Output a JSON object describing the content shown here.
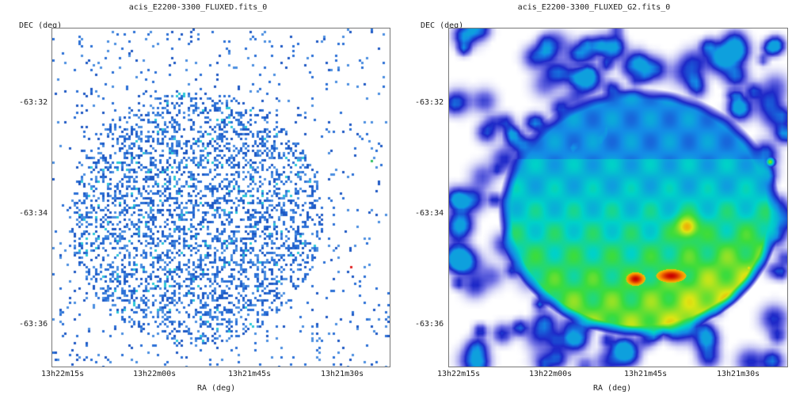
{
  "panels": [
    {
      "title": "acis_E2200-3300_FLUXED.fits_0",
      "ylabel": "DEC (deg)",
      "xlabel": "RA (deg)",
      "yticks": [
        "-63:32",
        "-63:34",
        "-63:36"
      ],
      "xticks": [
        "13h22m15s",
        "13h22m00s",
        "13h21m45s",
        "13h21m30s"
      ]
    },
    {
      "title": "acis_E2200-3300_FLUXED_G2.fits_0",
      "ylabel": "DEC (deg)",
      "xlabel": "RA (deg)",
      "yticks": [
        "-63:32",
        "-63:34",
        "-63:36"
      ],
      "xticks": [
        "13h22m15s",
        "13h22m00s",
        "13h21m45s",
        "13h21m30s"
      ]
    }
  ],
  "colors": {
    "background": "#ffffff",
    "low": "#1f5fd0",
    "mid": "#00c8e0",
    "high": "#e01010"
  }
}
